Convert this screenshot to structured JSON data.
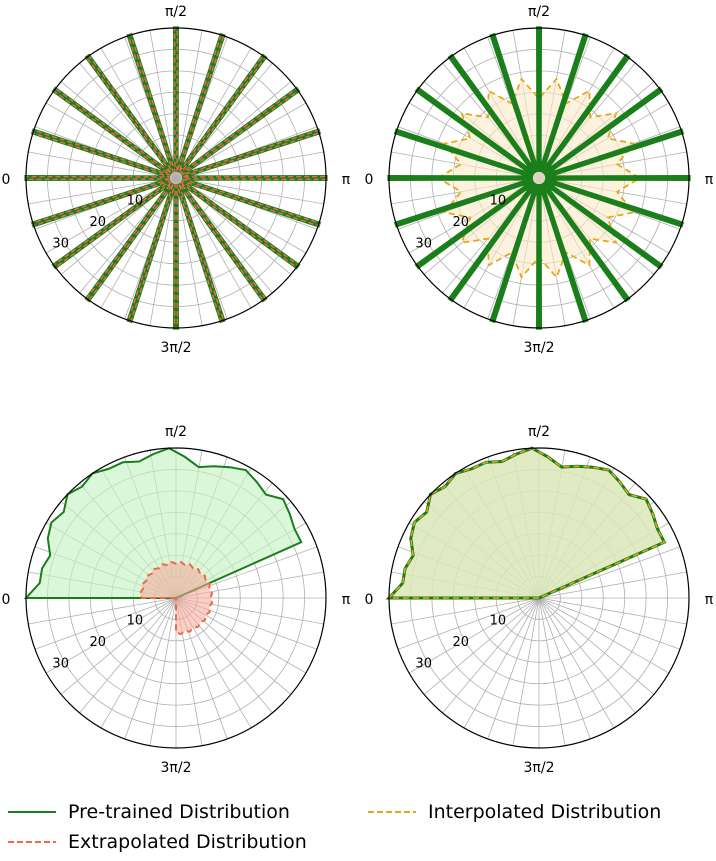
{
  "chart_data": [
    {
      "type": "polar-line",
      "panel": "top-left",
      "angle_ticks": [
        "0",
        "π/2",
        "π",
        "3π/2"
      ],
      "r_ticks": [
        "10",
        "20",
        "30"
      ],
      "rlim": [
        0,
        35
      ],
      "grid": true,
      "spokes": 36,
      "series": [
        {
          "name": "Pre-trained Distribution",
          "style": "spikes",
          "tip_r": 35,
          "base_r": 1.5,
          "count": 20
        },
        {
          "name": "Extrapolated Distribution",
          "style": "spikes",
          "tip_r": 35,
          "base_r": 1.5,
          "count": 20
        }
      ]
    },
    {
      "type": "polar-line",
      "panel": "top-right",
      "angle_ticks": [
        "0",
        "π/2",
        "π",
        "3π/2"
      ],
      "r_ticks": [
        "10",
        "20",
        "30"
      ],
      "rlim": [
        0,
        35
      ],
      "grid": true,
      "spokes": 36,
      "series": [
        {
          "name": "Pre-trained Distribution",
          "style": "spikes",
          "tip_r": 35,
          "base_r": 1.5,
          "count": 20
        },
        {
          "name": "Interpolated Distribution",
          "style": "star",
          "outer_r": 23.5,
          "inner_r": 18.5,
          "points": 18
        }
      ]
    },
    {
      "type": "polar-area",
      "panel": "bottom-left",
      "angle_ticks": [
        "0",
        "π/2",
        "π",
        "3π/2"
      ],
      "r_ticks": [
        "10",
        "20",
        "30"
      ],
      "rlim": [
        0,
        35
      ],
      "grid": true,
      "spokes": 36,
      "series": [
        {
          "name": "Pre-trained Distribution",
          "style": "sector",
          "theta_start_deg": 0,
          "theta_end_deg": 156,
          "r": [
            35,
            32,
            32,
            31,
            33,
            34,
            33,
            35,
            34,
            35,
            34,
            34,
            33,
            34,
            35,
            33,
            31,
            32,
            33,
            34,
            33,
            32,
            34,
            33,
            32,
            32
          ]
        },
        {
          "name": "Extrapolated Distribution",
          "style": "ring",
          "theta_start_deg": 0,
          "theta_end_deg": 270,
          "r": [
            8,
            8.5,
            8,
            8.5,
            8,
            8.5,
            8,
            8.5,
            8,
            8.5,
            8,
            8.5,
            8,
            8.5,
            8,
            8.5,
            8,
            8.5,
            8,
            8.5,
            8,
            8.5,
            8,
            8.5,
            8,
            8.5,
            8,
            8.5,
            8,
            8.5,
            8,
            8.5,
            8,
            8.5,
            8,
            8.5,
            8
          ]
        }
      ]
    },
    {
      "type": "polar-area",
      "panel": "bottom-right",
      "angle_ticks": [
        "0",
        "π/2",
        "π",
        "3π/2"
      ],
      "r_ticks": [
        "10",
        "20",
        "30"
      ],
      "rlim": [
        0,
        35
      ],
      "grid": true,
      "spokes": 36,
      "series": [
        {
          "name": "Pre-trained Distribution",
          "style": "sector",
          "theta_start_deg": 0,
          "theta_end_deg": 156,
          "r": [
            35,
            32,
            32,
            31,
            33,
            34,
            33,
            35,
            34,
            35,
            34,
            34,
            33,
            34,
            35,
            33,
            31,
            32,
            33,
            34,
            33,
            32,
            34,
            33,
            32,
            32
          ]
        },
        {
          "name": "Interpolated Distribution",
          "style": "sector",
          "theta_start_deg": 0,
          "theta_end_deg": 156,
          "r": [
            35,
            32,
            32,
            31,
            33,
            34,
            33,
            35,
            34,
            35,
            34,
            34,
            33,
            34,
            35,
            33,
            31,
            32,
            33,
            34,
            33,
            32,
            34,
            33,
            32,
            32
          ]
        }
      ]
    }
  ],
  "legend": [
    {
      "label": "Pre-trained Distribution",
      "color": "#1a7f1a",
      "dash": "solid"
    },
    {
      "label": "Extrapolated Distribution",
      "color": "#ee6a4c",
      "dash": "dashed"
    },
    {
      "label": "Interpolated Distribution",
      "color": "#e6a817",
      "dash": "dashed"
    }
  ],
  "colors": {
    "pretrained": "#1a7f1a",
    "pretrained_fill": "#c6f2c6",
    "extrapolated": "#ee6a4c",
    "extrapolated_fill": "#f7a898",
    "interpolated": "#e6a817",
    "interpolated_fill": "#fbe9c8",
    "grid": "#b0b0b0"
  }
}
